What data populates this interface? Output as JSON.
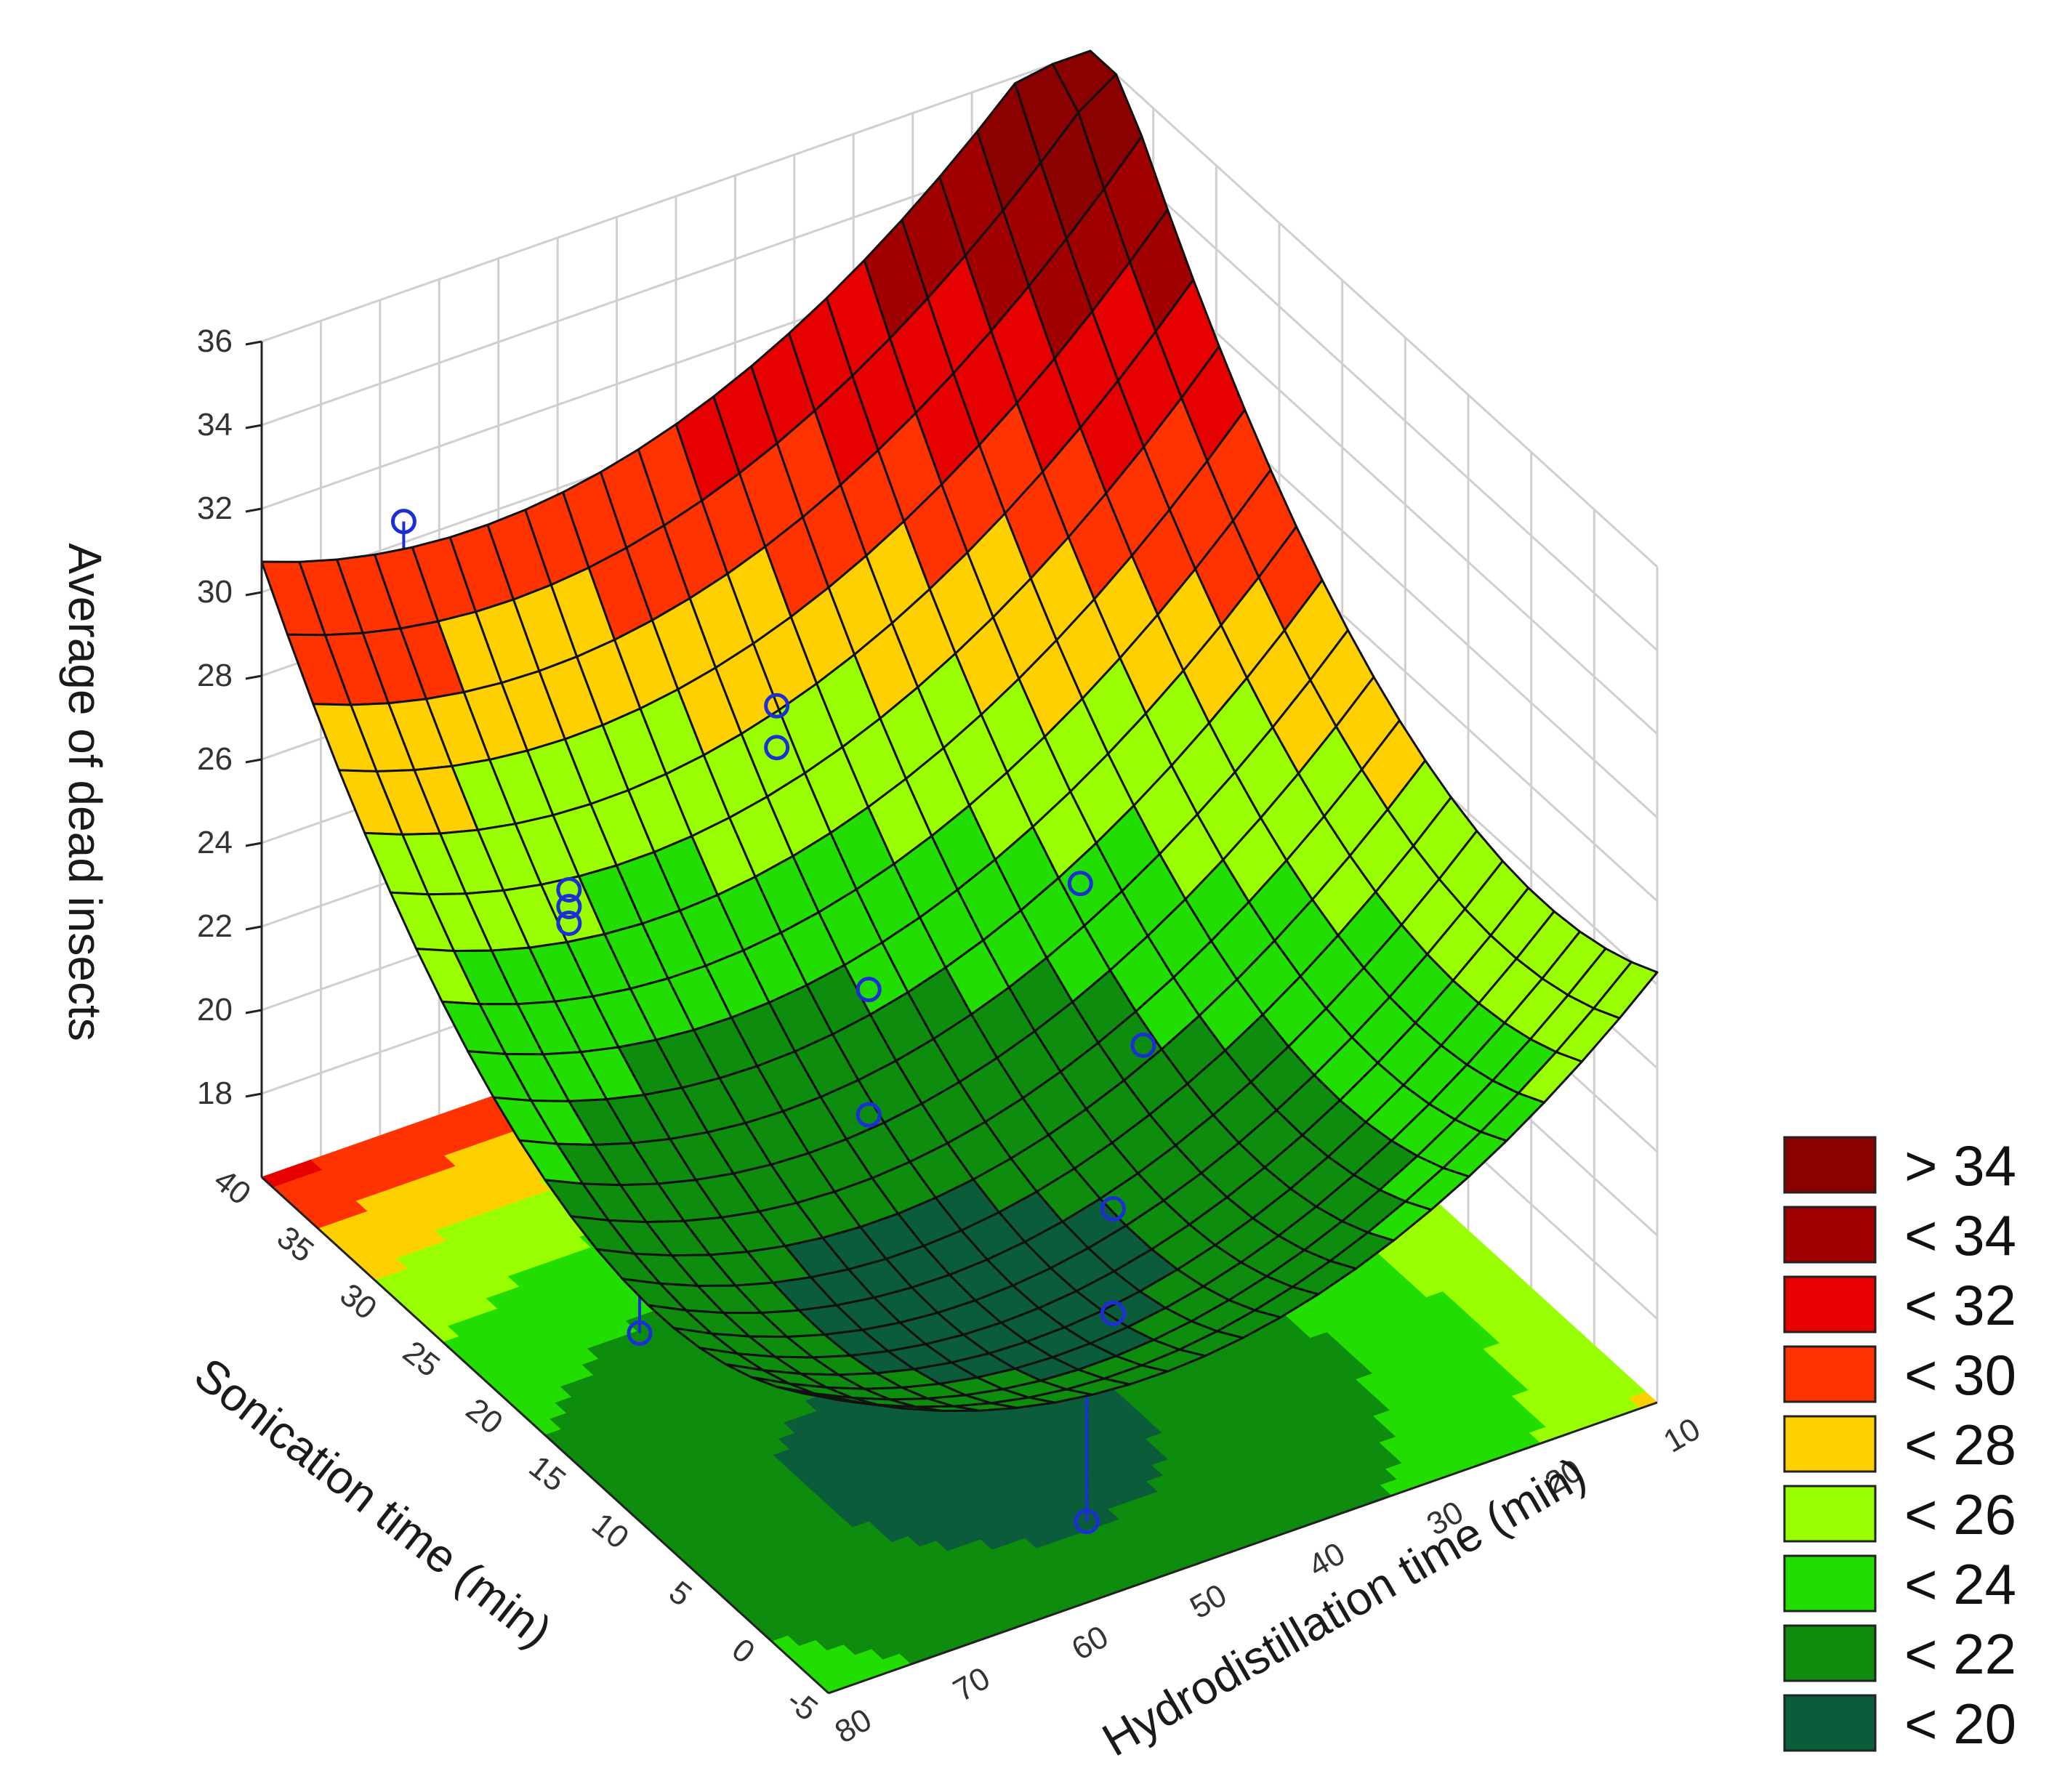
{
  "chart_data": {
    "type": "surface3d",
    "zlabel": "Average of dead insects",
    "ylabel": "Sonication time (min)",
    "xlabel": "Hydrodistillation time (min)",
    "zlim": [
      16,
      36
    ],
    "xlim": [
      10,
      80
    ],
    "ylim": [
      -5,
      40
    ],
    "z_ticks": [
      "18",
      "20",
      "22",
      "24",
      "26",
      "28",
      "30",
      "32",
      "34",
      "36"
    ],
    "y_ticks": [
      "-5",
      "0",
      "5",
      "10",
      "15",
      "20",
      "25",
      "30",
      "35",
      "40"
    ],
    "x_ticks": [
      "10",
      "20",
      "30",
      "40",
      "50",
      "60",
      "70",
      "80"
    ],
    "grid": true,
    "legend_position": "bottom-right",
    "legend": [
      {
        "label": "> 34",
        "color": "#8b0000"
      },
      {
        "label": "< 34",
        "color": "#a00000"
      },
      {
        "label": "< 32",
        "color": "#e60000"
      },
      {
        "label": "< 30",
        "color": "#ff3300"
      },
      {
        "label": "< 28",
        "color": "#ffd000"
      },
      {
        "label": "< 26",
        "color": "#99ff00"
      },
      {
        "label": "< 24",
        "color": "#22dd00"
      },
      {
        "label": "< 22",
        "color": "#0d8c0d"
      },
      {
        "label": "< 20",
        "color": "#0a5c3a"
      }
    ],
    "surface_model": {
      "description_free": true,
      "minimum_x": 55,
      "minimum_y": 7,
      "minimum_z": 19.5
    },
    "points": [
      {
        "x": 68,
        "y": 40,
        "z": 30.5,
        "fitted": 29.0
      },
      {
        "x": 70,
        "y": 25,
        "z": 26.0,
        "fitted": 24.5
      },
      {
        "x": 70,
        "y": 25,
        "z": 25.6,
        "fitted": 24.5
      },
      {
        "x": 70,
        "y": 25,
        "z": 25.2,
        "fitted": 24.5
      },
      {
        "x": 80,
        "y": 10,
        "z": 20.5,
        "fitted": 21.8
      },
      {
        "x": 45,
        "y": 32,
        "z": 26.0,
        "fitted": 25.0
      },
      {
        "x": 45,
        "y": 32,
        "z": 25.0,
        "fitted": 25.0
      },
      {
        "x": 50,
        "y": 20,
        "z": 23.0,
        "fitted": 20.5
      },
      {
        "x": 50,
        "y": 20,
        "z": 20.0,
        "fitted": 20.5
      },
      {
        "x": 30,
        "y": 22,
        "z": 23.0,
        "fitted": 21.5
      },
      {
        "x": 40,
        "y": 10,
        "z": 19.5,
        "fitted": 19.7
      },
      {
        "x": 40,
        "y": 10,
        "z": 17.0,
        "fitted": 19.7
      },
      {
        "x": 30,
        "y": 17,
        "z": 20.5,
        "fitted": 20.4
      },
      {
        "x": 55,
        "y": -2,
        "z": 16.8,
        "fitted": 20.0
      }
    ]
  }
}
